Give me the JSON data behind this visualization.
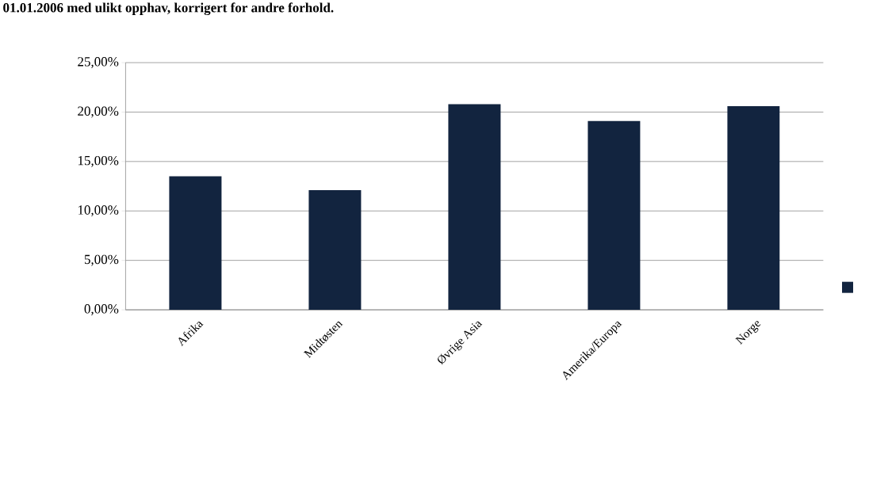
{
  "chart_data": {
    "type": "bar",
    "title": "01.01.2006 med ulikt opphav, korrigert for andre forhold.",
    "categories": [
      "Afrika",
      "Midtøsten",
      "Øvrige Asia",
      "Amerika/Europa",
      "Norge"
    ],
    "values": [
      13.5,
      12.1,
      20.8,
      19.1,
      20.6
    ],
    "color": "#12243f",
    "ylim": [
      0,
      25
    ],
    "yticks": [
      {
        "value": 0,
        "label": "0,00%"
      },
      {
        "value": 5,
        "label": "5,00%"
      },
      {
        "value": 10,
        "label": "10,00%"
      },
      {
        "value": 15,
        "label": "15,00%"
      },
      {
        "value": 20,
        "label": "20,00%"
      },
      {
        "value": 25,
        "label": "25,00%"
      }
    ],
    "grid": "y"
  }
}
